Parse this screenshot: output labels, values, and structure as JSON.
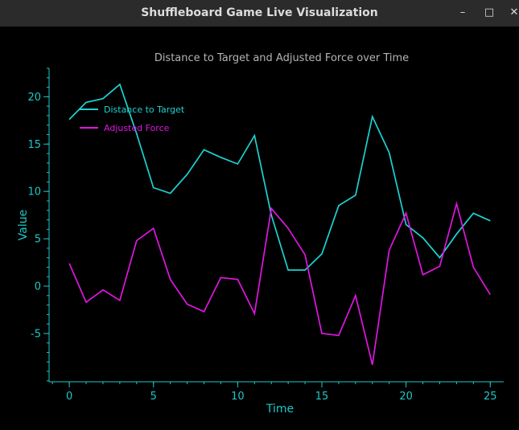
{
  "window": {
    "title": "Shuffleboard Game Live Visualization",
    "min_icon": "minimize-icon",
    "max_icon": "maximize-icon",
    "close_icon": "close-icon",
    "min_glyph": "–",
    "max_glyph": "□",
    "close_glyph": "✕"
  },
  "chart_data": {
    "type": "line",
    "title": "Distance to Target and Adjusted Force over Time",
    "xlabel": "Time",
    "ylabel": "Value",
    "xlim": [
      -1.2,
      25.8
    ],
    "ylim": [
      -10.1,
      23.0
    ],
    "xticks": [
      0,
      5,
      10,
      15,
      20,
      25
    ],
    "yticks": [
      -5,
      0,
      5,
      10,
      15,
      20
    ],
    "grid": false,
    "legend_position": "top-left",
    "axis_color": "#1ec8c8",
    "background": "#000000",
    "x": [
      0,
      1,
      2,
      3,
      4,
      5,
      6,
      7,
      8,
      9,
      10,
      11,
      12,
      13,
      14,
      15,
      16,
      17,
      18,
      19,
      20,
      21,
      22,
      23,
      24,
      25
    ],
    "series": [
      {
        "name": "Distance to Target",
        "color": "#1ed2d2",
        "values": [
          17.6,
          19.4,
          19.8,
          21.3,
          16.1,
          10.4,
          9.8,
          11.8,
          14.4,
          13.6,
          12.9,
          15.9,
          7.5,
          1.7,
          1.7,
          3.4,
          8.5,
          9.6,
          17.9,
          14.1,
          6.5,
          5.1,
          3.0,
          5.5,
          7.7,
          6.9
        ]
      },
      {
        "name": "Adjusted Force",
        "color": "#e016e0",
        "values": [
          2.4,
          -1.7,
          -0.4,
          -1.5,
          4.8,
          6.1,
          0.7,
          -1.9,
          -2.7,
          0.9,
          0.7,
          -2.9,
          8.2,
          6.1,
          3.3,
          -5.0,
          -5.2,
          -1.0,
          -8.3,
          3.8,
          7.7,
          1.2,
          2.1,
          8.7,
          2.0,
          -0.9
        ]
      }
    ]
  }
}
